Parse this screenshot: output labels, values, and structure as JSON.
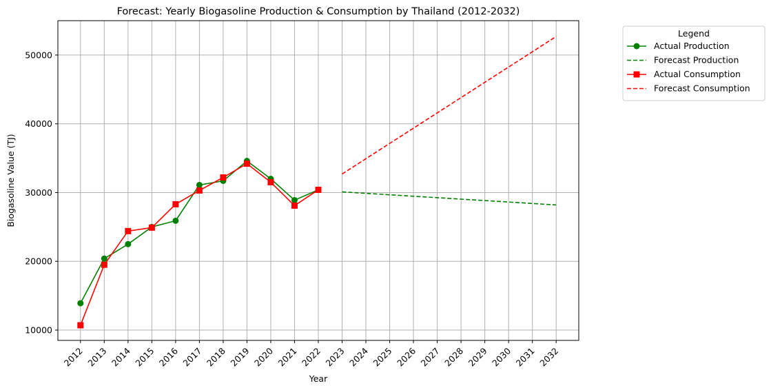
{
  "chart_data": {
    "type": "line",
    "title": "Forecast: Yearly Biogasoline Production & Consumption by Thailand (2012-2032)",
    "xlabel": "Year",
    "ylabel": "Biogasoline Value (TJ)",
    "ylim": [
      8500,
      55000
    ],
    "y_ticks": [
      10000,
      20000,
      30000,
      40000,
      50000
    ],
    "x_ticks": [
      2012,
      2013,
      2014,
      2015,
      2016,
      2017,
      2018,
      2019,
      2020,
      2021,
      2022,
      2023,
      2024,
      2025,
      2026,
      2027,
      2028,
      2029,
      2030,
      2031,
      2032
    ],
    "xlim": [
      2011.05,
      2032.95
    ],
    "grid": true,
    "legend": {
      "title": "Legend",
      "placement": "outside-top-right"
    },
    "series": [
      {
        "name": "Actual Production",
        "color": "#008000",
        "style": "solid",
        "marker": "circle",
        "x": [
          2012,
          2013,
          2014,
          2015,
          2016,
          2017,
          2018,
          2019,
          2020,
          2021,
          2022
        ],
        "y": [
          13900,
          20400,
          22500,
          25000,
          25900,
          31100,
          31700,
          34600,
          32000,
          28900,
          30400
        ]
      },
      {
        "name": "Forecast Production",
        "color": "#008000",
        "style": "dashed",
        "marker": "none",
        "x": [
          2023,
          2032
        ],
        "y": [
          30100,
          28200
        ]
      },
      {
        "name": "Actual Consumption",
        "color": "#ff0000",
        "style": "solid",
        "marker": "square",
        "x": [
          2012,
          2013,
          2014,
          2015,
          2016,
          2017,
          2018,
          2019,
          2020,
          2021,
          2022
        ],
        "y": [
          10700,
          19500,
          24400,
          24900,
          28300,
          30300,
          32200,
          34200,
          31500,
          28100,
          30400
        ]
      },
      {
        "name": "Forecast Consumption",
        "color": "#ff0000",
        "style": "dashed",
        "marker": "none",
        "x": [
          2023,
          2032
        ],
        "y": [
          32700,
          52700
        ]
      }
    ]
  }
}
